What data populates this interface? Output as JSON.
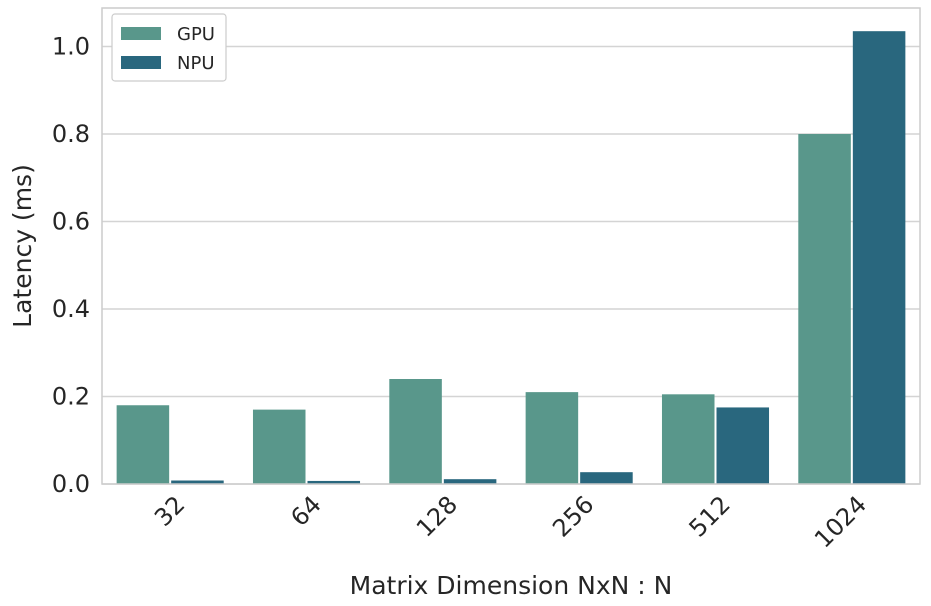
{
  "chart_data": {
    "type": "bar",
    "categories": [
      "32",
      "64",
      "128",
      "256",
      "512",
      "1024"
    ],
    "series": [
      {
        "name": "GPU",
        "values": [
          0.18,
          0.17,
          0.24,
          0.21,
          0.205,
          0.8
        ],
        "color": "#59978b"
      },
      {
        "name": "NPU",
        "values": [
          0.008,
          0.007,
          0.011,
          0.027,
          0.175,
          1.035
        ],
        "color": "#29677e"
      }
    ],
    "xlabel": "Matrix Dimension NxN : N",
    "ylabel": "Latency (ms)",
    "ylim": [
      0,
      1.088
    ],
    "yticks": [
      "0.0",
      "0.2",
      "0.4",
      "0.6",
      "0.8",
      "1.0"
    ],
    "grid": true,
    "legend_position": "top-left"
  }
}
